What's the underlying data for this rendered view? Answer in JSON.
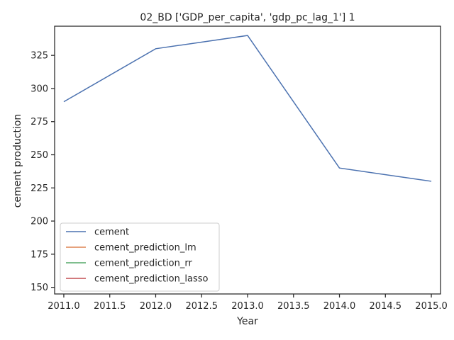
{
  "chart_data": {
    "type": "line",
    "title": "02_BD ['GDP_per_capita', 'gdp_pc_lag_1'] 1",
    "xlabel": "Year",
    "ylabel": "cement production",
    "xlim": [
      2010.9,
      2015.1
    ],
    "ylim": [
      145,
      347
    ],
    "x_ticks": [
      2011.0,
      2011.5,
      2012.0,
      2012.5,
      2013.0,
      2013.5,
      2014.0,
      2014.5,
      2015.0
    ],
    "x_tick_labels": [
      "2011.0",
      "2011.5",
      "2012.0",
      "2012.5",
      "2013.0",
      "2013.5",
      "2014.0",
      "2014.5",
      "2015.0"
    ],
    "y_ticks": [
      150,
      175,
      200,
      225,
      250,
      275,
      300,
      325
    ],
    "y_tick_labels": [
      "150",
      "175",
      "200",
      "225",
      "250",
      "275",
      "300",
      "325"
    ],
    "grid": false,
    "legend_position": "lower-left",
    "series": [
      {
        "name": "cement",
        "color": "#4c72b0",
        "x": [
          2011,
          2012,
          2013,
          2014,
          2015
        ],
        "values": [
          290,
          330,
          340,
          240,
          230
        ]
      },
      {
        "name": "cement_prediction_lm",
        "color": "#dd8452",
        "x": [],
        "values": []
      },
      {
        "name": "cement_prediction_rr",
        "color": "#55a868",
        "x": [],
        "values": []
      },
      {
        "name": "cement_prediction_lasso",
        "color": "#c44e52",
        "x": [],
        "values": []
      }
    ]
  }
}
